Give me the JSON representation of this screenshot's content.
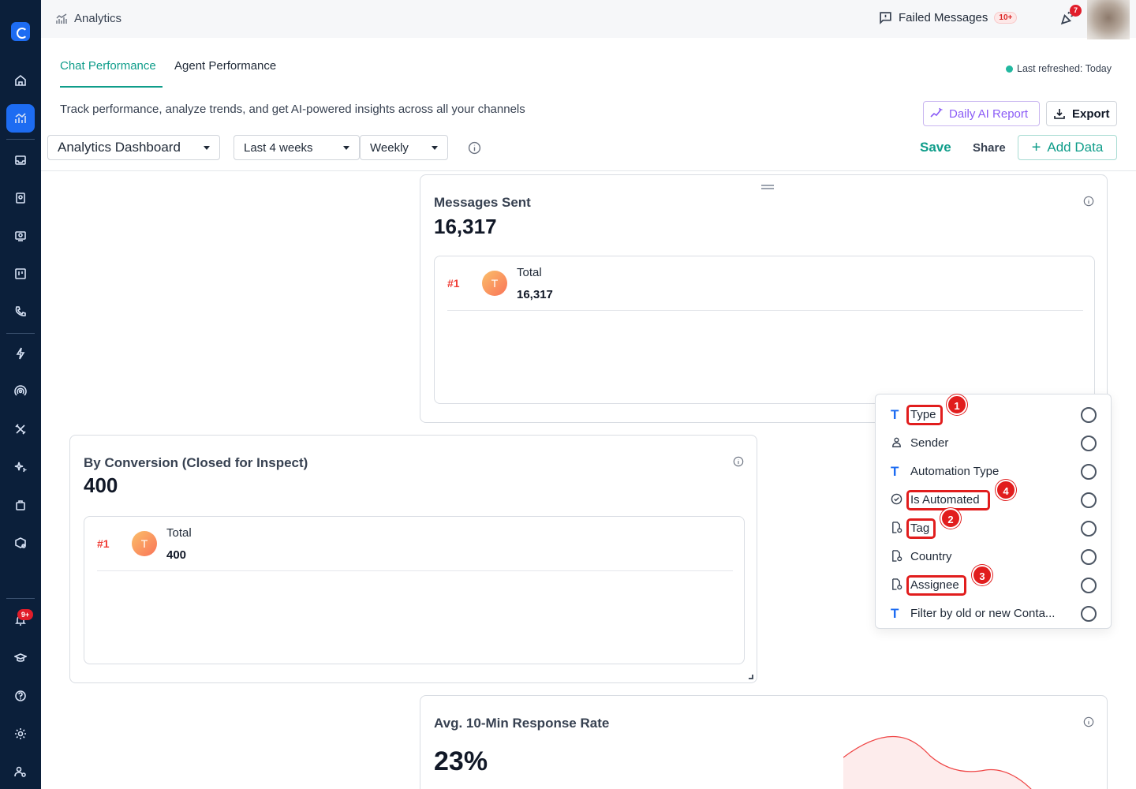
{
  "topbar": {
    "title": "Analytics",
    "failed_messages_label": "Failed Messages",
    "failed_messages_badge": "10+",
    "notification_badge": "7"
  },
  "sidebar": {
    "notification_badge": "9+",
    "items": [
      "home-icon",
      "analytics-icon",
      "inbox-icon",
      "contacts-icon",
      "broadcast-icon",
      "board-icon",
      "phone-icon",
      "automation-icon",
      "signal-icon",
      "tools-icon",
      "ai-icon",
      "bag-icon",
      "commerce-icon",
      "bell-icon",
      "learn-icon",
      "help-icon",
      "settings-icon",
      "team-icon"
    ]
  },
  "tabs": [
    {
      "label": "Chat Performance",
      "active": true
    },
    {
      "label": "Agent Performance",
      "active": false
    }
  ],
  "last_refreshed": "Last refreshed: Today",
  "subtitle": "Track performance, analyze trends, and get AI-powered insights across all your channels",
  "buttons": {
    "daily_ai_report": "Daily AI Report",
    "export": "Export",
    "save": "Save",
    "share": "Share",
    "add_data": "Add Data"
  },
  "filters": {
    "dashboard": "Analytics Dashboard",
    "range": "Last 4 weeks",
    "interval": "Weekly"
  },
  "cards": {
    "messages_sent": {
      "title": "Messages Sent",
      "value": "16,317",
      "rank": "#1",
      "avatar": "T",
      "row_label": "Total",
      "row_value": "16,317"
    },
    "conversion": {
      "title": "By Conversion (Closed for Inspect)",
      "value": "400",
      "rank": "#1",
      "avatar": "T",
      "row_label": "Total",
      "row_value": "400"
    },
    "response_rate": {
      "title": "Avg. 10-Min Response Rate",
      "value": "23%"
    }
  },
  "dropdown": {
    "items": [
      {
        "label": "Type",
        "icon": "text-icon"
      },
      {
        "label": "Sender",
        "icon": "person-icon"
      },
      {
        "label": "Automation Type",
        "icon": "text-icon"
      },
      {
        "label": "Is Automated",
        "icon": "check-circle-icon"
      },
      {
        "label": "Tag",
        "icon": "document-icon"
      },
      {
        "label": "Country",
        "icon": "document-icon"
      },
      {
        "label": "Assignee",
        "icon": "document-icon"
      },
      {
        "label": "Filter by old or new Conta...",
        "icon": "text-icon"
      }
    ],
    "annotations": [
      "1",
      "4",
      "2",
      "3"
    ]
  },
  "colors": {
    "accent": "#0f9d8a",
    "sidebar": "#0b1f3a",
    "primary": "#1d6cf2",
    "ai": "#8b5cf6",
    "alert": "#e11d1d"
  }
}
